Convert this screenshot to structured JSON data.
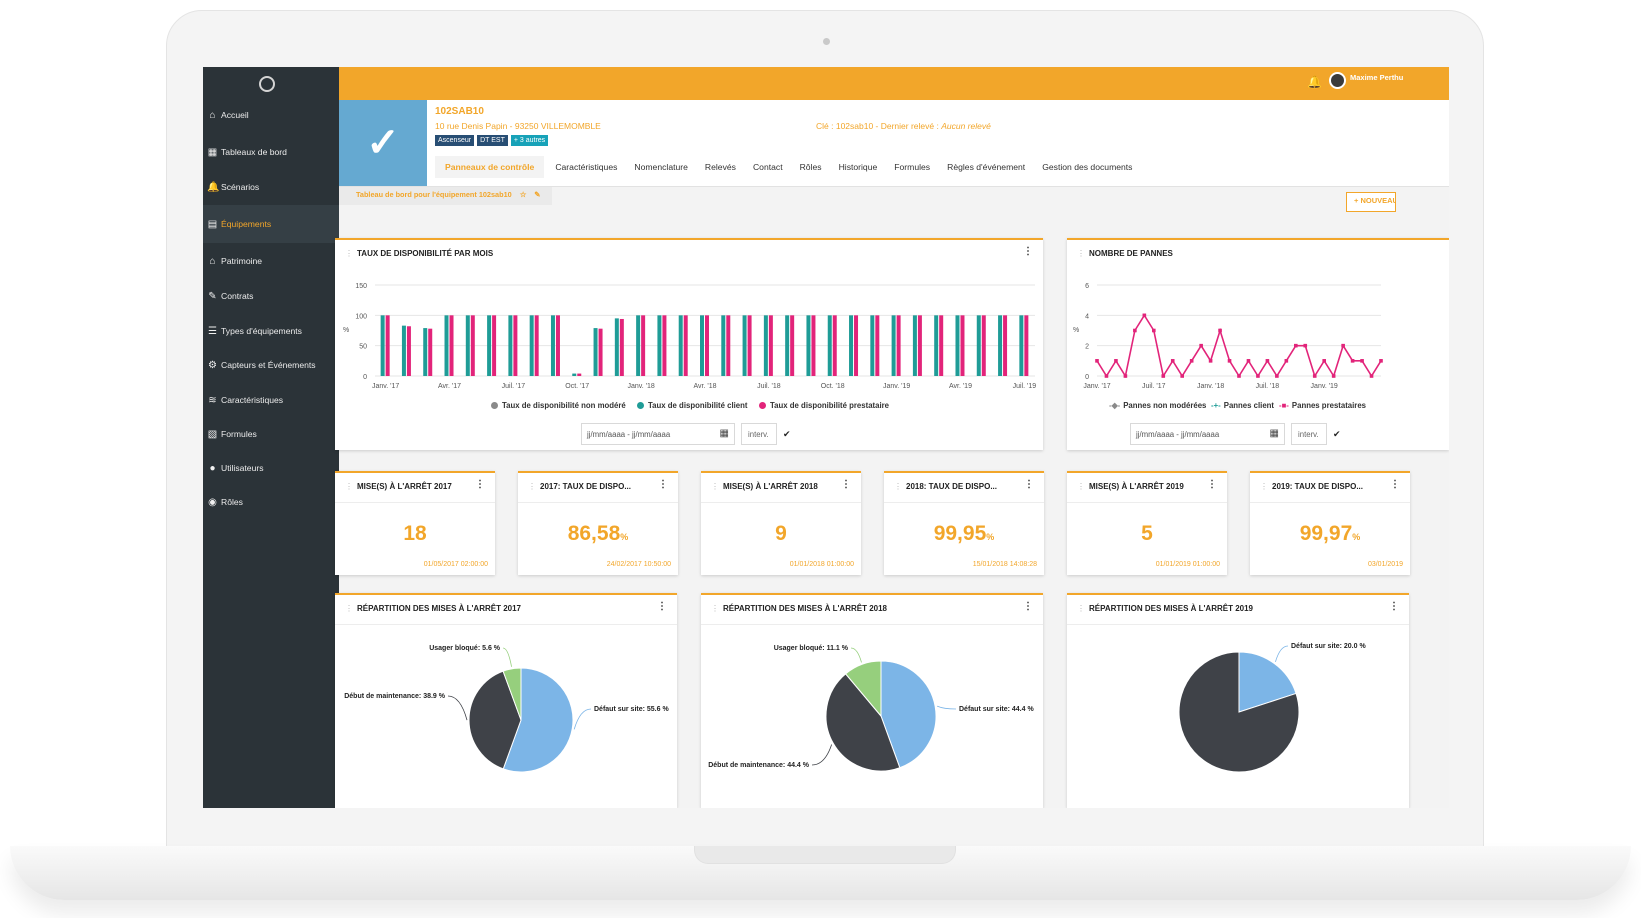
{
  "user": {
    "name": "Maxime Perthu"
  },
  "sidebar": {
    "items": [
      {
        "label": "Accueil",
        "icon": "home-icon"
      },
      {
        "label": "Tableaux de bord",
        "icon": "dashboard-icon"
      },
      {
        "label": "Scénarios",
        "icon": "bell-icon"
      },
      {
        "label": "Équipements",
        "icon": "equipment-icon",
        "active": true
      },
      {
        "label": "Patrimoine",
        "icon": "factory-icon"
      },
      {
        "label": "Contrats",
        "icon": "contract-icon"
      },
      {
        "label": "Types d'équipements",
        "icon": "list-icon"
      },
      {
        "label": "Capteurs et Événements",
        "icon": "gear-icon"
      },
      {
        "label": "Caractéristiques",
        "icon": "layers-icon"
      },
      {
        "label": "Formules",
        "icon": "formula-icon"
      },
      {
        "label": "Utilisateurs",
        "icon": "user-icon"
      },
      {
        "label": "Rôles",
        "icon": "roles-icon"
      }
    ]
  },
  "equipment": {
    "name": "102SAB10",
    "address": "10 rue Denis Papin - 93250 VILLEMOMBLE",
    "key": "Clé : 102sab10 - Dernier relevé :",
    "last_reading": "Aucun relevé",
    "tags": [
      "Ascenseur",
      "DT EST",
      "+ 3 autres"
    ]
  },
  "tabs": [
    "Panneaux de contrôle",
    "Caractéristiques",
    "Nomenclature",
    "Relevés",
    "Contact",
    "Rôles",
    "Historique",
    "Formules",
    "Règles d'événement",
    "Gestion des documents"
  ],
  "breadcrumb": "Tableau de bord pour l'équipement 102sab10",
  "new_button": "+ NOUVEAU",
  "date_placeholder": "jj/mm/aaaa - jj/mm/aaaa",
  "interval_placeholder": "interv.",
  "availability_card": {
    "title": "TAUX DE DISPONIBILITÉ PAR MOIS",
    "ylabel": "%"
  },
  "failures_card": {
    "title": "NOMBRE DE PANNES",
    "ylabel": "%"
  },
  "kpis": [
    {
      "title": "MISE(S) À L'ARRÊT 2017",
      "value": "18",
      "unit": "",
      "date": "01/05/2017 02:00:00"
    },
    {
      "title": "2017: TAUX DE DISPO...",
      "value": "86,58",
      "unit": "%",
      "date": "24/02/2017 10:50:00"
    },
    {
      "title": "MISE(S) À L'ARRÊT 2018",
      "value": "9",
      "unit": "",
      "date": "01/01/2018 01:00:00"
    },
    {
      "title": "2018: TAUX DE DISPO...",
      "value": "99,95",
      "unit": "%",
      "date": "15/01/2018 14:08:28"
    },
    {
      "title": "MISE(S) À L'ARRÊT 2019",
      "value": "5",
      "unit": "",
      "date": "01/01/2019 01:00:00"
    },
    {
      "title": "2019: TAUX DE DISPO...",
      "value": "99,97",
      "unit": "%",
      "date": "03/01/2019"
    }
  ],
  "pies": [
    {
      "title": "RÉPARTITION DES MISES À L'ARRÊT 2017"
    },
    {
      "title": "RÉPARTITION DES MISES À L'ARRÊT 2018"
    },
    {
      "title": "RÉPARTITION DES MISES À L'ARRÊT 2019"
    }
  ],
  "colors": {
    "accent": "#f2a62a",
    "sidebar": "#2b3338",
    "grey": "#8a8a8a",
    "teal": "#1f9c97",
    "pink": "#e2247a",
    "blue": "#7cb5e7",
    "dark": "#3f4248",
    "green": "#96cf7d"
  },
  "chart_data": [
    {
      "type": "bar",
      "title": "TAUX DE DISPONIBILITÉ PAR MOIS",
      "ylabel": "%",
      "ylim": [
        0,
        150
      ],
      "yticks": [
        0,
        50,
        100,
        150
      ],
      "xtick_labels": [
        "Janv. '17",
        "Avr. '17",
        "Juil. '17",
        "Oct. '17",
        "Janv. '18",
        "Avr. '18",
        "Juil. '18",
        "Oct. '18",
        "Janv. '19",
        "Avr. '19",
        "Juil. '19"
      ],
      "series": [
        {
          "name": "Taux de disponibilité non modéré",
          "color": "#8a8a8a",
          "values": []
        },
        {
          "name": "Taux de disponibilité client",
          "color": "#1f9c97",
          "values": [
            100,
            83,
            79,
            100,
            100,
            100,
            100,
            100,
            100,
            4,
            79,
            95,
            100,
            100,
            100,
            100,
            100,
            100,
            100,
            100,
            100,
            100,
            100,
            100,
            100,
            100,
            100,
            100,
            100,
            100,
            100
          ]
        },
        {
          "name": "Taux de disponibilité prestataire",
          "color": "#e2247a",
          "values": [
            100,
            82,
            78,
            100,
            100,
            100,
            100,
            100,
            100,
            4,
            78,
            94,
            100,
            100,
            100,
            100,
            100,
            100,
            100,
            100,
            100,
            100,
            100,
            100,
            100,
            100,
            100,
            100,
            100,
            100,
            100
          ]
        }
      ]
    },
    {
      "type": "line",
      "title": "NOMBRE DE PANNES",
      "ylabel": "%",
      "ylim": [
        0,
        6
      ],
      "yticks": [
        0,
        2,
        4,
        6
      ],
      "xtick_labels": [
        "Janv. '17",
        "Juil. '17",
        "Janv. '18",
        "Juil. '18",
        "Janv. '19"
      ],
      "series": [
        {
          "name": "Pannes non modérées",
          "color": "#8a8a8a",
          "values": []
        },
        {
          "name": "Pannes client",
          "color": "#1f9c97",
          "values": []
        },
        {
          "name": "Pannes prestataires",
          "color": "#e2247a",
          "values": [
            1,
            0,
            1,
            0,
            3,
            4,
            3,
            0,
            1,
            0,
            1,
            2,
            1,
            3,
            1,
            0,
            1,
            0,
            1,
            0,
            1,
            2,
            2,
            0,
            1,
            0,
            2,
            1,
            1,
            0,
            1
          ]
        }
      ]
    },
    {
      "type": "pie",
      "title": "RÉPARTITION DES MISES À L'ARRÊT 2017",
      "slices": [
        {
          "label": "Défaut sur site: 55.6 %",
          "value": 55.6,
          "color": "#7cb5e7"
        },
        {
          "label": "Début de maintenance: 38.9 %",
          "value": 38.9,
          "color": "#3f4248"
        },
        {
          "label": "Usager bloqué: 5.6 %",
          "value": 5.6,
          "color": "#96cf7d"
        }
      ]
    },
    {
      "type": "pie",
      "title": "RÉPARTITION DES MISES À L'ARRÊT 2018",
      "slices": [
        {
          "label": "Défaut sur site: 44.4 %",
          "value": 44.4,
          "color": "#7cb5e7"
        },
        {
          "label": "Début de maintenance: 44.4 %",
          "value": 44.4,
          "color": "#3f4248"
        },
        {
          "label": "Usager bloqué: 11.1 %",
          "value": 11.1,
          "color": "#96cf7d"
        }
      ]
    },
    {
      "type": "pie",
      "title": "RÉPARTITION DES MISES À L'ARRÊT 2019",
      "slices": [
        {
          "label": "Défaut sur site: 20.0 %",
          "value": 20.0,
          "color": "#7cb5e7"
        },
        {
          "label": "",
          "value": 80.0,
          "color": "#3f4248"
        }
      ]
    }
  ]
}
